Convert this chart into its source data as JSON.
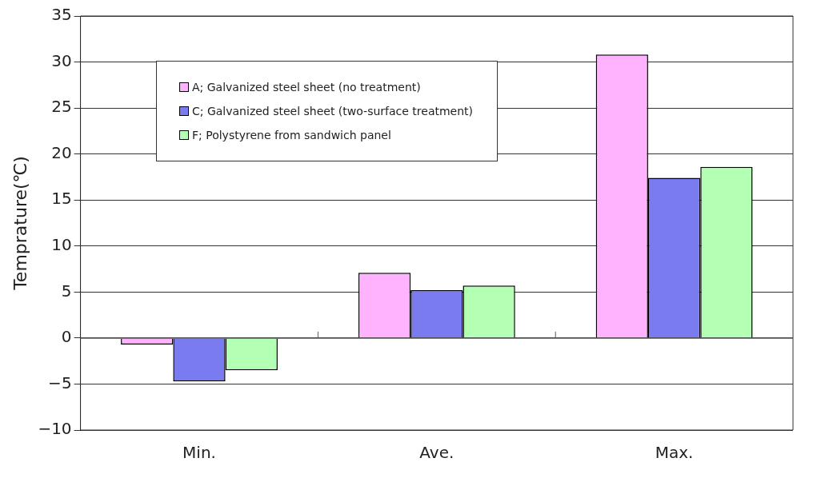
{
  "chart_data": {
    "type": "bar",
    "ylabel": "Temprature(℃)",
    "categories": [
      "Min.",
      "Ave.",
      "Max."
    ],
    "series": [
      {
        "name": "A; Galvanized steel sheet (no treatment)",
        "color": "#ffb3ff",
        "values": [
          -0.7,
          7.1,
          30.8
        ]
      },
      {
        "name": "C; Galvanized steel sheet (two-surface treatment)",
        "color": "#7b7bf0",
        "values": [
          -4.7,
          5.2,
          17.4
        ]
      },
      {
        "name": "F; Polystyrene from sandwich panel",
        "color": "#b3ffb3",
        "values": [
          -3.5,
          5.7,
          18.6
        ]
      }
    ],
    "ylim": [
      -10,
      35
    ],
    "yticks": [
      -10,
      -5,
      0,
      5,
      10,
      15,
      20,
      25,
      30,
      35
    ],
    "grid": "y",
    "legend": "top left"
  }
}
